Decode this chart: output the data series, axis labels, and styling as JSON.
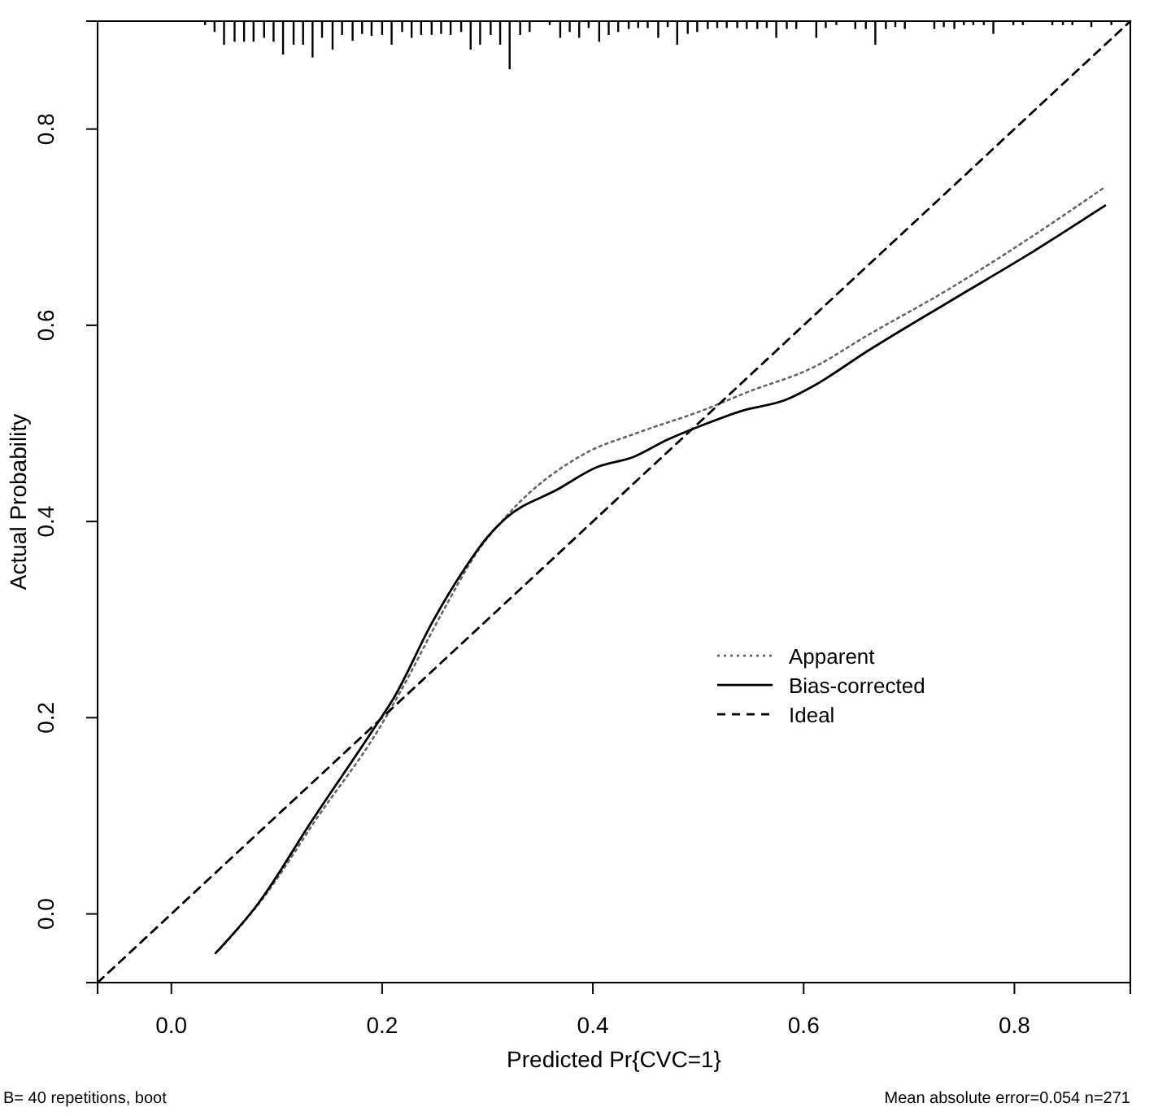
{
  "chart_data": {
    "type": "line",
    "xlabel": "Predicted Pr{CVC=1}",
    "ylabel": "Actual Probability",
    "xlim": [
      -0.07,
      0.91
    ],
    "ylim": [
      -0.07,
      0.91
    ],
    "xticks": [
      {
        "value": 0,
        "label": "0.0"
      },
      0.2,
      0.4,
      0.6,
      0.8
    ],
    "yticks": [
      {
        "value": 0,
        "label": "0.0"
      },
      0.2,
      0.4,
      0.6,
      0.8
    ],
    "grid": false,
    "legend": "right",
    "marker": "none",
    "annotations": [
      "B= 40 repetitions, boot",
      "Mean absolute error=0.054 n=271"
    ],
    "series": [
      {
        "name": "Apparent",
        "color": "#666666",
        "line_style": "dotted",
        "x": [
          0.046,
          0.087,
          0.139,
          0.196,
          0.217,
          0.258,
          0.289,
          0.32,
          0.392,
          0.444,
          0.506,
          0.547,
          0.609,
          0.661,
          0.738,
          0.816,
          0.886
        ],
        "values": [
          -0.036,
          0.016,
          0.099,
          0.187,
          0.226,
          0.309,
          0.367,
          0.408,
          0.469,
          0.491,
          0.514,
          0.532,
          0.557,
          0.59,
          0.637,
          0.69,
          0.741
        ]
      },
      {
        "name": "Bias-corrected",
        "color": "#000000",
        "line_style": "solid",
        "x": [
          0.042,
          0.082,
          0.134,
          0.191,
          0.211,
          0.248,
          0.279,
          0.299,
          0.317,
          0.367,
          0.403,
          0.439,
          0.47,
          0.506,
          0.542,
          0.583,
          0.609,
          0.661,
          0.738,
          0.816,
          0.886
        ],
        "values": [
          -0.04,
          0.01,
          0.096,
          0.187,
          0.22,
          0.298,
          0.353,
          0.383,
          0.403,
          0.433,
          0.455,
          0.466,
          0.483,
          0.499,
          0.513,
          0.524,
          0.538,
          0.574,
          0.624,
          0.674,
          0.722
        ]
      },
      {
        "name": "Ideal",
        "color": "#000000",
        "line_style": "dashed",
        "x": [
          -0.07,
          0.91
        ],
        "values": [
          -0.07,
          0.91
        ]
      },
      {
        "type": "bar",
        "color": "#000000",
        "base": [
          0.91,
          0.91,
          0.91,
          0.91,
          0.91,
          0.91,
          0.91,
          0.91,
          0.91,
          0.91,
          0.91,
          0.91,
          0.91,
          0.91,
          0.91,
          0.91,
          0.91,
          0.91,
          0.91,
          0.91,
          0.91,
          0.91,
          0.91,
          0.91,
          0.91,
          0.91,
          0.91,
          0.91,
          0.91,
          0.91,
          0.91,
          0.91,
          0.91,
          0.91,
          0.91,
          0.91,
          0.91,
          0.91,
          0.91,
          0.91,
          0.91,
          0.91,
          0.91,
          0.91,
          0.91,
          0.91,
          0.91,
          0.91,
          0.91,
          0.91,
          0.91,
          0.91,
          0.91,
          0.91,
          0.91,
          0.91,
          0.91,
          0.91,
          0.91,
          0.91,
          0.91,
          0.91,
          0.91,
          0.91,
          0.91,
          0.91,
          0.91,
          0.91,
          0.91,
          0.91,
          0.91,
          0.91,
          0.91,
          0.91,
          0.91,
          0.91,
          0.91,
          0.91,
          0.91,
          0.91,
          0.91,
          0.91,
          0.91
        ],
        "x": [
          0.032,
          0.041,
          0.05,
          0.06,
          0.069,
          0.078,
          0.088,
          0.097,
          0.106,
          0.116,
          0.125,
          0.134,
          0.143,
          0.153,
          0.162,
          0.172,
          0.181,
          0.19,
          0.2,
          0.209,
          0.219,
          0.228,
          0.237,
          0.247,
          0.256,
          0.265,
          0.275,
          0.284,
          0.293,
          0.303,
          0.312,
          0.321,
          0.331,
          0.34,
          0.359,
          0.369,
          0.378,
          0.387,
          0.396,
          0.406,
          0.415,
          0.424,
          0.434,
          0.443,
          0.452,
          0.462,
          0.471,
          0.48,
          0.49,
          0.499,
          0.509,
          0.518,
          0.527,
          0.537,
          0.546,
          0.556,
          0.565,
          0.574,
          0.584,
          0.593,
          0.612,
          0.621,
          0.631,
          0.649,
          0.659,
          0.668,
          0.678,
          0.687,
          0.696,
          0.724,
          0.733,
          0.743,
          0.752,
          0.761,
          0.771,
          0.78,
          0.799,
          0.808,
          0.836,
          0.846,
          0.855,
          0.873,
          0.892
        ],
        "values": [
          -0.004,
          -0.011,
          -0.024,
          -0.021,
          -0.021,
          -0.021,
          -0.017,
          -0.021,
          -0.034,
          -0.024,
          -0.024,
          -0.037,
          -0.017,
          -0.029,
          -0.014,
          -0.02,
          -0.013,
          -0.015,
          -0.014,
          -0.024,
          -0.011,
          -0.017,
          -0.014,
          -0.014,
          -0.013,
          -0.014,
          -0.011,
          -0.029,
          -0.024,
          -0.014,
          -0.024,
          -0.049,
          -0.014,
          -0.011,
          -0.004,
          -0.017,
          -0.011,
          -0.017,
          -0.007,
          -0.021,
          -0.014,
          -0.011,
          -0.008,
          -0.007,
          -0.007,
          -0.017,
          -0.006,
          -0.024,
          -0.013,
          -0.011,
          -0.008,
          -0.007,
          -0.007,
          -0.007,
          -0.008,
          -0.008,
          -0.007,
          -0.017,
          -0.008,
          -0.008,
          -0.017,
          -0.007,
          -0.004,
          -0.008,
          -0.008,
          -0.024,
          -0.008,
          -0.006,
          -0.008,
          -0.008,
          -0.006,
          -0.008,
          -0.004,
          -0.004,
          -0.004,
          -0.013,
          -0.004,
          -0.004,
          -0.004,
          -0.004,
          -0.004,
          -0.006,
          -0.004
        ]
      }
    ]
  }
}
